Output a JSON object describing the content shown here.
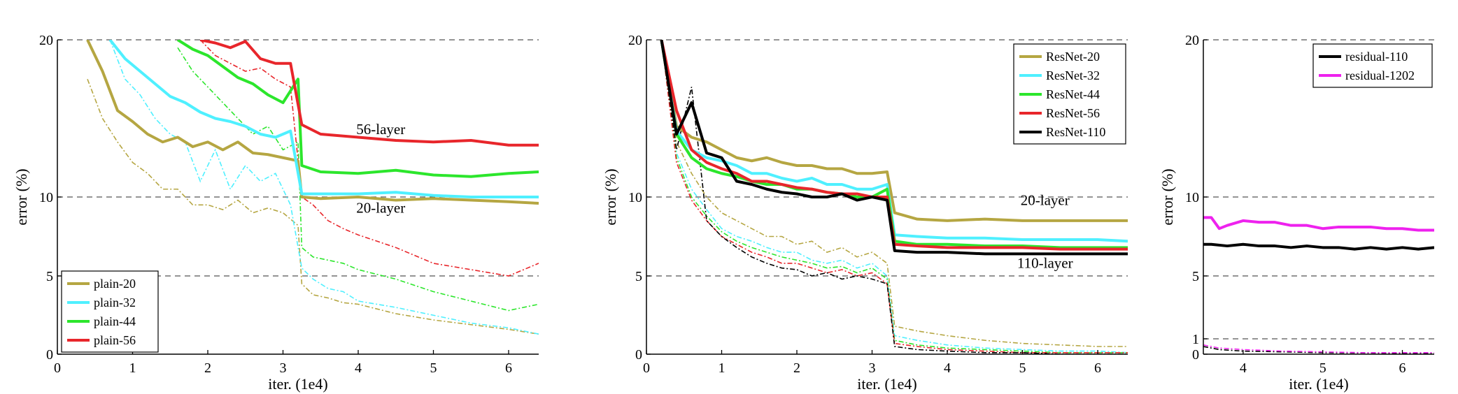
{
  "chart_data": [
    {
      "type": "line",
      "xlabel": "iter. (1e4)",
      "ylabel": "error (%)",
      "xlim": [
        0,
        6.4
      ],
      "ylim": [
        0,
        20
      ],
      "xticks": [
        "0",
        "1",
        "2",
        "3",
        "4",
        "5",
        "6"
      ],
      "yticks": [
        "0",
        "5",
        "10",
        "20"
      ],
      "grid": "dashed horizontal lines at 5, 10, 20",
      "legend_position": "bottom-left",
      "annotations": [
        {
          "text": "56-layer",
          "x": 4.3,
          "y": 14.0
        },
        {
          "text": "20-layer",
          "x": 4.3,
          "y": 9.0
        }
      ],
      "series": [
        {
          "name": "plain-20",
          "color": "#b5a642",
          "train_x": [
            0.4,
            0.6,
            0.8,
            1.0,
            1.2,
            1.4,
            1.6,
            1.8,
            2.0,
            2.2,
            2.4,
            2.6,
            2.8,
            3.0,
            3.2,
            3.25,
            3.4,
            3.6,
            3.8,
            4.0,
            4.5,
            5.0,
            5.5,
            6.0,
            6.4
          ],
          "train_y": [
            17.5,
            15.0,
            13.5,
            12.2,
            11.5,
            10.5,
            10.5,
            9.5,
            9.5,
            9.2,
            9.8,
            9.0,
            9.3,
            9.0,
            8.2,
            4.5,
            3.8,
            3.6,
            3.3,
            3.2,
            2.6,
            2.2,
            1.9,
            1.6,
            1.3
          ],
          "test_x": [
            0.4,
            0.6,
            0.8,
            1.0,
            1.2,
            1.4,
            1.6,
            1.8,
            2.0,
            2.2,
            2.4,
            2.6,
            2.8,
            3.0,
            3.2,
            3.25,
            3.5,
            4.0,
            4.5,
            5.0,
            5.5,
            6.0,
            6.4
          ],
          "test_y": [
            20,
            18,
            15.5,
            14.8,
            14.0,
            13.5,
            13.8,
            13.2,
            13.5,
            13.0,
            13.5,
            12.8,
            12.7,
            12.5,
            12.3,
            10.0,
            9.9,
            10.0,
            9.8,
            9.9,
            9.8,
            9.7,
            9.6
          ]
        },
        {
          "name": "plain-32",
          "color": "#4ff0ff",
          "train_x": [
            0.7,
            0.9,
            1.1,
            1.3,
            1.5,
            1.7,
            1.9,
            2.1,
            2.3,
            2.5,
            2.7,
            2.9,
            3.1,
            3.25,
            3.4,
            3.6,
            3.8,
            4.0,
            4.5,
            5.0,
            5.5,
            6.0,
            6.4
          ],
          "train_y": [
            20,
            17.5,
            16.5,
            15.0,
            14.0,
            13.5,
            11.0,
            13.0,
            10.5,
            12.0,
            11.0,
            11.5,
            9.5,
            5.5,
            4.8,
            4.2,
            4.0,
            3.4,
            3.0,
            2.5,
            2.0,
            1.7,
            1.3
          ],
          "test_x": [
            0.7,
            0.9,
            1.1,
            1.3,
            1.5,
            1.7,
            1.9,
            2.1,
            2.3,
            2.5,
            2.7,
            2.9,
            3.1,
            3.25,
            3.5,
            4.0,
            4.5,
            5.0,
            5.5,
            6.0,
            6.4
          ],
          "test_y": [
            20,
            18.8,
            18.0,
            17.2,
            16.4,
            16.0,
            15.4,
            15.0,
            14.8,
            14.5,
            14.0,
            13.8,
            14.2,
            10.2,
            10.2,
            10.2,
            10.3,
            10.1,
            10.0,
            10.0,
            10.0
          ]
        },
        {
          "name": "plain-44",
          "color": "#2ce62c",
          "train_x": [
            1.6,
            1.8,
            2.0,
            2.2,
            2.4,
            2.6,
            2.8,
            3.0,
            3.2,
            3.25,
            3.4,
            3.6,
            3.8,
            4.0,
            4.5,
            5.0,
            5.5,
            6.0,
            6.4
          ],
          "train_y": [
            19.5,
            18.0,
            17.0,
            16.0,
            15.0,
            14.0,
            14.5,
            13.0,
            13.5,
            6.8,
            6.2,
            6.0,
            5.8,
            5.4,
            4.8,
            4.0,
            3.4,
            2.8,
            3.2
          ],
          "test_x": [
            1.6,
            1.8,
            2.0,
            2.2,
            2.4,
            2.6,
            2.8,
            3.0,
            3.2,
            3.25,
            3.5,
            4.0,
            4.5,
            5.0,
            5.5,
            6.0,
            6.4
          ],
          "test_y": [
            20,
            19.4,
            19.0,
            18.3,
            17.6,
            17.2,
            16.5,
            16.0,
            17.5,
            12.0,
            11.6,
            11.5,
            11.7,
            11.4,
            11.3,
            11.5,
            11.6
          ]
        },
        {
          "name": "plain-56",
          "color": "#e8262b",
          "train_x": [
            1.9,
            2.1,
            2.3,
            2.5,
            2.7,
            2.9,
            3.1,
            3.25,
            3.4,
            3.6,
            3.8,
            4.0,
            4.5,
            5.0,
            5.5,
            6.0,
            6.4
          ],
          "train_y": [
            20,
            19.0,
            18.5,
            18.0,
            18.2,
            17.5,
            17.0,
            10.0,
            9.5,
            8.5,
            8.0,
            7.6,
            6.8,
            5.8,
            5.4,
            5.0,
            5.8
          ],
          "test_x": [
            1.9,
            2.1,
            2.3,
            2.5,
            2.7,
            2.9,
            3.1,
            3.25,
            3.5,
            4.0,
            4.5,
            5.0,
            5.5,
            6.0,
            6.4
          ],
          "test_y": [
            20,
            19.8,
            19.5,
            19.9,
            18.8,
            18.5,
            18.5,
            14.6,
            14.0,
            13.8,
            13.6,
            13.5,
            13.6,
            13.3,
            13.3
          ]
        }
      ]
    },
    {
      "type": "line",
      "xlabel": "iter. (1e4)",
      "ylabel": "error (%)",
      "xlim": [
        0,
        6.4
      ],
      "ylim": [
        0,
        20
      ],
      "xticks": [
        "0",
        "1",
        "2",
        "3",
        "4",
        "5",
        "6"
      ],
      "yticks": [
        "0",
        "5",
        "10",
        "20"
      ],
      "grid": "dashed horizontal lines at 5, 10, 20",
      "legend_position": "top-right",
      "annotations": [
        {
          "text": "20-layer",
          "x": 5.3,
          "y": 9.5
        },
        {
          "text": "110-layer",
          "x": 5.3,
          "y": 5.5
        }
      ],
      "series": [
        {
          "name": "ResNet-20",
          "color": "#b5a642",
          "train_x": [
            0.2,
            0.4,
            0.6,
            0.8,
            1.0,
            1.2,
            1.4,
            1.6,
            1.8,
            2.0,
            2.2,
            2.4,
            2.6,
            2.8,
            3.0,
            3.2,
            3.3,
            3.6,
            4.0,
            4.5,
            5.0,
            5.5,
            6.0,
            6.4
          ],
          "train_y": [
            20,
            13.5,
            11.5,
            10.0,
            9.0,
            8.5,
            8.0,
            7.5,
            7.5,
            7.0,
            7.2,
            6.5,
            6.8,
            6.2,
            6.5,
            5.8,
            1.8,
            1.5,
            1.2,
            0.9,
            0.7,
            0.6,
            0.5,
            0.5
          ],
          "test_x": [
            0.2,
            0.4,
            0.6,
            0.8,
            1.0,
            1.2,
            1.4,
            1.6,
            1.8,
            2.0,
            2.2,
            2.4,
            2.6,
            2.8,
            3.0,
            3.2,
            3.3,
            3.6,
            4.0,
            4.5,
            5.0,
            5.5,
            6.0,
            6.4
          ],
          "test_y": [
            20,
            14.5,
            13.8,
            13.5,
            13.0,
            12.5,
            12.3,
            12.5,
            12.2,
            12.0,
            12.0,
            11.8,
            11.8,
            11.5,
            11.5,
            11.6,
            9.0,
            8.6,
            8.5,
            8.6,
            8.5,
            8.5,
            8.5,
            8.5
          ]
        },
        {
          "name": "ResNet-32",
          "color": "#4ff0ff",
          "train_x": [
            0.2,
            0.4,
            0.6,
            0.8,
            1.0,
            1.2,
            1.4,
            1.6,
            1.8,
            2.0,
            2.2,
            2.4,
            2.6,
            2.8,
            3.0,
            3.2,
            3.3,
            3.6,
            4.0,
            4.5,
            5.0,
            5.5,
            6.0,
            6.4
          ],
          "train_y": [
            20,
            12.8,
            10.5,
            9.2,
            8.0,
            7.5,
            7.2,
            6.8,
            6.5,
            6.5,
            6.0,
            5.8,
            6.0,
            5.5,
            5.8,
            5.0,
            1.2,
            0.9,
            0.6,
            0.4,
            0.3,
            0.2,
            0.2,
            0.1
          ],
          "test_x": [
            0.2,
            0.4,
            0.6,
            0.8,
            1.0,
            1.2,
            1.4,
            1.6,
            1.8,
            2.0,
            2.2,
            2.4,
            2.6,
            2.8,
            3.0,
            3.2,
            3.3,
            3.6,
            4.0,
            4.5,
            5.0,
            5.5,
            6.0,
            6.4
          ],
          "test_y": [
            20,
            14.2,
            13.0,
            12.5,
            12.3,
            12.0,
            11.5,
            11.5,
            11.2,
            11.0,
            11.2,
            10.8,
            10.8,
            10.5,
            10.5,
            10.8,
            7.6,
            7.5,
            7.4,
            7.4,
            7.3,
            7.3,
            7.3,
            7.2
          ]
        },
        {
          "name": "ResNet-44",
          "color": "#2ce62c",
          "train_x": [
            0.2,
            0.4,
            0.6,
            0.8,
            1.0,
            1.2,
            1.4,
            1.6,
            1.8,
            2.0,
            2.2,
            2.4,
            2.6,
            2.8,
            3.0,
            3.2,
            3.3,
            3.6,
            4.0,
            4.5,
            5.0,
            5.5,
            6.0,
            6.4
          ],
          "train_y": [
            20,
            12.5,
            10.0,
            8.8,
            7.8,
            7.2,
            6.8,
            6.5,
            6.2,
            6.0,
            5.8,
            5.5,
            5.6,
            5.2,
            5.5,
            4.8,
            0.9,
            0.6,
            0.4,
            0.3,
            0.2,
            0.1,
            0.1,
            0.1
          ],
          "test_x": [
            0.2,
            0.4,
            0.6,
            0.8,
            1.0,
            1.2,
            1.4,
            1.6,
            1.8,
            2.0,
            2.2,
            2.4,
            2.6,
            2.8,
            3.0,
            3.2,
            3.3,
            3.6,
            4.0,
            4.5,
            5.0,
            5.5,
            6.0,
            6.4
          ],
          "test_y": [
            20,
            14.0,
            12.5,
            11.8,
            11.5,
            11.3,
            11.0,
            10.8,
            10.8,
            10.5,
            10.5,
            10.3,
            10.2,
            10.0,
            10.0,
            10.5,
            7.2,
            7.0,
            7.0,
            6.9,
            6.9,
            6.8,
            6.8,
            6.8
          ]
        },
        {
          "name": "ResNet-56",
          "color": "#e8262b",
          "train_x": [
            0.2,
            0.4,
            0.6,
            0.8,
            1.0,
            1.2,
            1.4,
            1.6,
            1.8,
            2.0,
            2.2,
            2.4,
            2.6,
            2.8,
            3.0,
            3.2,
            3.3,
            3.6,
            4.0,
            4.5,
            5.0,
            5.5,
            6.0,
            6.4
          ],
          "train_y": [
            20,
            12.2,
            9.8,
            8.5,
            7.5,
            7.0,
            6.5,
            6.2,
            5.8,
            5.8,
            5.5,
            5.2,
            5.4,
            5.0,
            5.2,
            4.5,
            0.7,
            0.5,
            0.3,
            0.2,
            0.1,
            0.1,
            0.1,
            0.1
          ],
          "test_x": [
            0.2,
            0.4,
            0.6,
            0.8,
            1.0,
            1.2,
            1.4,
            1.6,
            1.8,
            2.0,
            2.2,
            2.4,
            2.6,
            2.8,
            3.0,
            3.2,
            3.3,
            3.6,
            4.0,
            4.5,
            5.0,
            5.5,
            6.0,
            6.4
          ],
          "test_y": [
            20,
            15.5,
            13.0,
            12.2,
            11.8,
            11.5,
            11.0,
            11.0,
            10.8,
            10.6,
            10.5,
            10.3,
            10.2,
            10.2,
            10.0,
            10.0,
            7.0,
            6.9,
            6.8,
            6.8,
            6.8,
            6.7,
            6.7,
            6.7
          ]
        },
        {
          "name": "ResNet-110",
          "color": "#000000",
          "train_x": [
            0.2,
            0.4,
            0.6,
            0.8,
            1.0,
            1.2,
            1.4,
            1.6,
            1.8,
            2.0,
            2.2,
            2.4,
            2.6,
            2.8,
            3.0,
            3.2,
            3.3,
            3.6,
            4.0,
            4.5,
            5.0,
            5.5,
            6.0,
            6.4
          ],
          "train_y": [
            20,
            13.0,
            17.0,
            8.5,
            7.5,
            6.8,
            6.2,
            5.8,
            5.5,
            5.4,
            5.0,
            5.2,
            4.8,
            5.0,
            4.8,
            4.5,
            0.5,
            0.3,
            0.2,
            0.1,
            0.1,
            0.0,
            0.0,
            0.0
          ],
          "test_x": [
            0.2,
            0.4,
            0.6,
            0.8,
            1.0,
            1.2,
            1.4,
            1.6,
            1.8,
            2.0,
            2.2,
            2.4,
            2.6,
            2.8,
            3.0,
            3.2,
            3.3,
            3.6,
            4.0,
            4.5,
            5.0,
            5.5,
            6.0,
            6.4
          ],
          "test_y": [
            20,
            14.0,
            16.0,
            12.8,
            12.5,
            11.0,
            10.8,
            10.5,
            10.3,
            10.2,
            10.0,
            10.0,
            10.2,
            9.8,
            10.0,
            9.8,
            6.6,
            6.5,
            6.5,
            6.4,
            6.4,
            6.4,
            6.4,
            6.4
          ]
        }
      ]
    },
    {
      "type": "line",
      "xlabel": "iter. (1e4)",
      "ylabel": "error (%)",
      "xlim": [
        3.5,
        6.4
      ],
      "ylim": [
        0,
        20
      ],
      "xticks": [
        "4",
        "5",
        "6"
      ],
      "yticks": [
        "0",
        "1",
        "5",
        "10",
        "20"
      ],
      "grid": "dashed horizontal lines at 1, 5, 10, 20",
      "legend_position": "top-right",
      "series": [
        {
          "name": "residual-110",
          "color": "#000000",
          "train_x": [
            3.5,
            3.7,
            4.0,
            4.5,
            5.0,
            5.5,
            6.0,
            6.4
          ],
          "train_y": [
            0.5,
            0.3,
            0.2,
            0.15,
            0.1,
            0.08,
            0.05,
            0.05
          ],
          "test_x": [
            3.5,
            3.6,
            3.8,
            4.0,
            4.2,
            4.4,
            4.6,
            4.8,
            5.0,
            5.2,
            5.4,
            5.6,
            5.8,
            6.0,
            6.2,
            6.4
          ],
          "test_y": [
            7.0,
            7.0,
            6.9,
            7.0,
            6.9,
            6.9,
            6.8,
            6.9,
            6.8,
            6.8,
            6.7,
            6.8,
            6.7,
            6.8,
            6.7,
            6.8
          ]
        },
        {
          "name": "residual-1202",
          "color": "#ee22ee",
          "train_x": [
            3.5,
            3.7,
            4.0,
            4.5,
            5.0,
            5.5,
            6.0,
            6.4
          ],
          "train_y": [
            0.6,
            0.4,
            0.3,
            0.2,
            0.15,
            0.1,
            0.1,
            0.1
          ],
          "test_x": [
            3.5,
            3.6,
            3.7,
            3.8,
            4.0,
            4.2,
            4.4,
            4.6,
            4.8,
            5.0,
            5.2,
            5.4,
            5.6,
            5.8,
            6.0,
            6.2,
            6.4
          ],
          "test_y": [
            8.7,
            8.7,
            8.0,
            8.2,
            8.5,
            8.4,
            8.4,
            8.2,
            8.2,
            8.0,
            8.1,
            8.1,
            8.1,
            8.0,
            8.0,
            7.9,
            7.9
          ]
        }
      ]
    }
  ]
}
